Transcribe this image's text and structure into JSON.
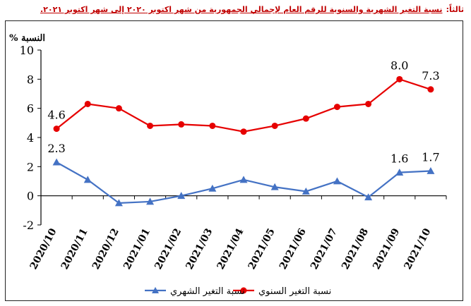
{
  "heading": {
    "prefix": "ثالثاً:",
    "title": "نسبة التغير الشهرية والسنوية للرقم العام لإجمالي الجمهورية من شهر اكتوبر ٢٠٢٠ إلى شهر اكتوبر ٢٠٢١."
  },
  "chart_data": {
    "type": "line",
    "ylabel": "النسبة %",
    "ylim": [
      -2,
      10
    ],
    "yticks": [
      -2,
      0,
      2,
      4,
      6,
      8,
      10
    ],
    "grid": false,
    "legend_position": "bottom",
    "categories": [
      "2020/10",
      "2020/11",
      "2020/12",
      "2021/01",
      "2021/02",
      "2021/03",
      "2021/04",
      "2021/05",
      "2021/06",
      "2021/07",
      "2021/08",
      "2021/09",
      "2021/10"
    ],
    "series": [
      {
        "name": "نسبة التغير السنوي",
        "color": "#e60000",
        "marker": "circle",
        "values": [
          4.6,
          6.3,
          6.0,
          4.8,
          4.9,
          4.8,
          4.4,
          4.8,
          5.3,
          6.1,
          6.3,
          8.0,
          7.3
        ],
        "labeled_points": [
          {
            "index": 0,
            "label": "4.6"
          },
          {
            "index": 11,
            "label": "8.0"
          },
          {
            "index": 12,
            "label": "7.3"
          }
        ]
      },
      {
        "name": "نسبة التغير الشهري",
        "color": "#4472c4",
        "marker": "triangle",
        "values": [
          2.3,
          1.1,
          -0.5,
          -0.4,
          0.0,
          0.5,
          1.1,
          0.6,
          0.3,
          1.0,
          -0.1,
          1.6,
          1.7
        ],
        "labeled_points": [
          {
            "index": 0,
            "label": "2.3"
          },
          {
            "index": 11,
            "label": "1.6"
          },
          {
            "index": 12,
            "label": "1.7"
          }
        ]
      }
    ]
  }
}
